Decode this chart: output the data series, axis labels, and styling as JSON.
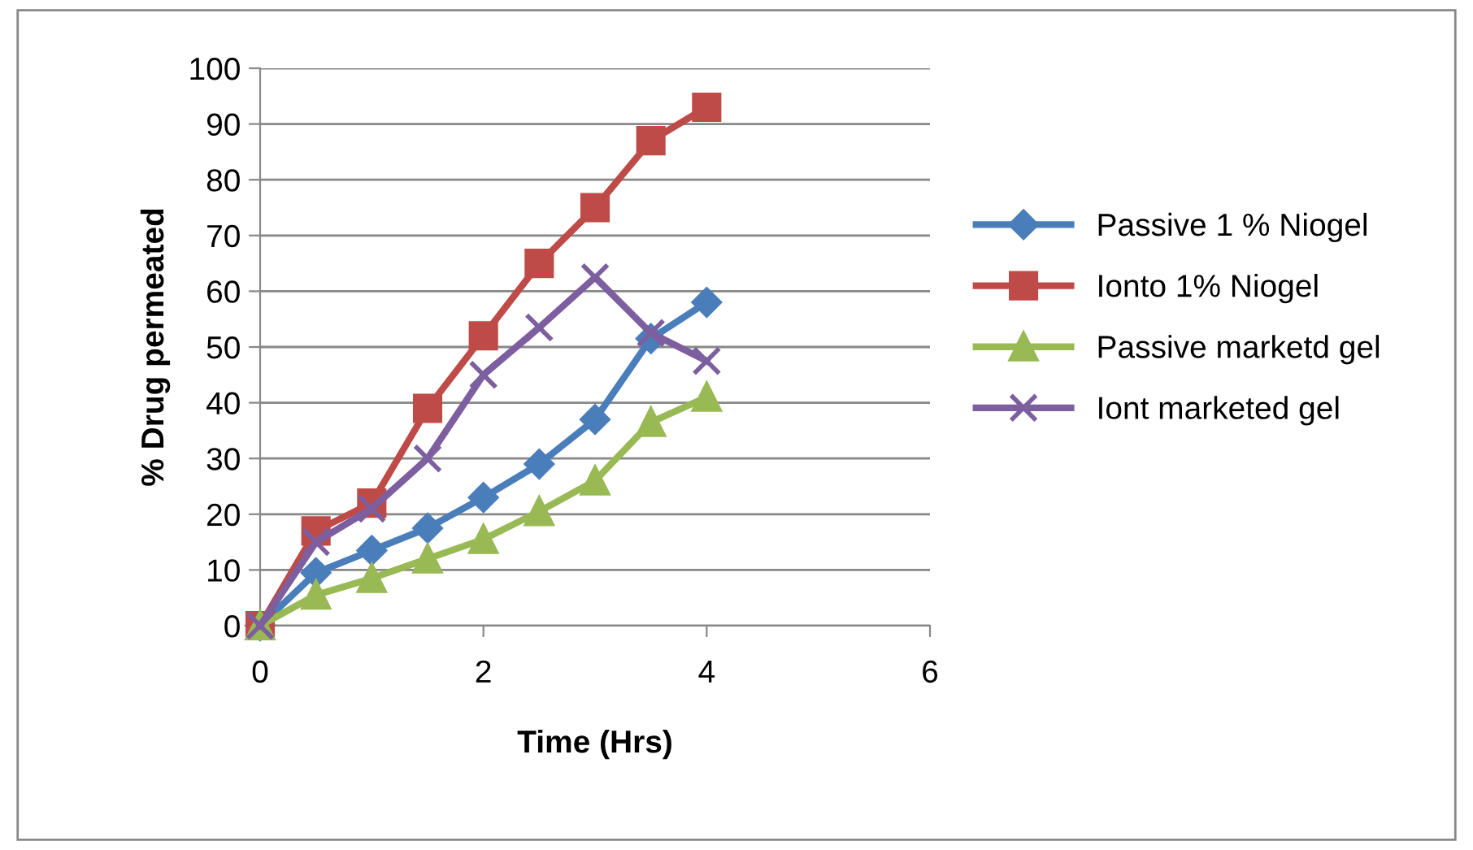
{
  "chart_data": {
    "type": "line",
    "xlabel": "Time (Hrs)",
    "ylabel": "% Drug permeated",
    "x": [
      0,
      0.5,
      1,
      1.5,
      2,
      2.5,
      3,
      3.5,
      4
    ],
    "xlim": [
      0,
      6
    ],
    "xticks": [
      0,
      2,
      4,
      6
    ],
    "ylim": [
      0,
      100
    ],
    "yticks": [
      0,
      10,
      20,
      30,
      40,
      50,
      60,
      70,
      80,
      90,
      100
    ],
    "grid": "y",
    "legend": "right",
    "series": [
      {
        "name": "Passive 1 % Niogel",
        "color": "#4a7ebb",
        "marker": "diamond",
        "values": [
          0,
          9.5,
          13.5,
          17.5,
          23,
          29,
          37,
          51.5,
          58
        ]
      },
      {
        "name": "Ionto 1% Niogel",
        "color": "#be4b48",
        "marker": "square",
        "values": [
          0,
          17,
          22,
          39,
          52,
          65,
          75,
          87,
          93
        ]
      },
      {
        "name": "Passive marketd gel",
        "color": "#98b954",
        "marker": "triangle",
        "values": [
          0,
          5.5,
          8.5,
          12,
          15.5,
          20.5,
          26,
          36.5,
          41
        ]
      },
      {
        "name": "Iont marketed gel",
        "color": "#7d5fa0",
        "marker": "cross",
        "values": [
          0,
          15,
          21,
          30,
          45,
          53.5,
          62.5,
          52.5,
          47.5
        ]
      }
    ]
  }
}
